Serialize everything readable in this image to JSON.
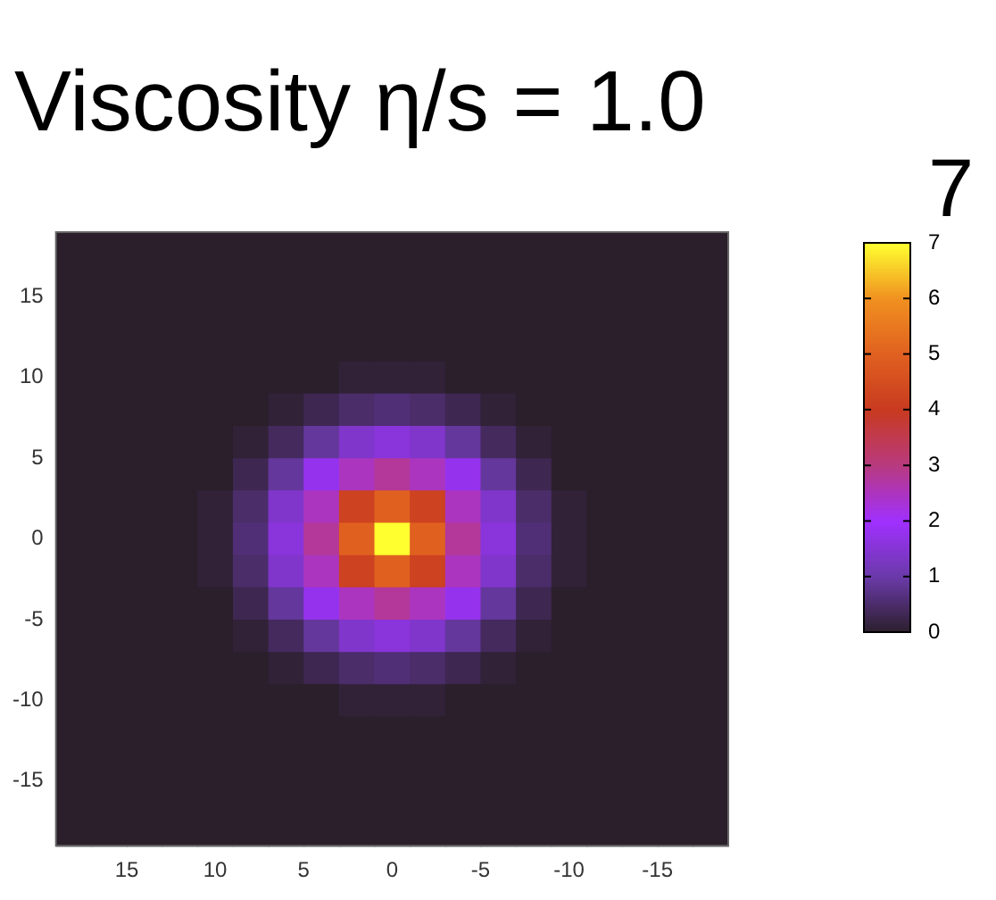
{
  "chart_data": {
    "type": "heatmap",
    "title": "Viscosity η/s = 1.0",
    "annotations": [
      "7"
    ],
    "x": [
      18,
      16,
      14,
      12,
      10,
      8,
      6,
      4,
      2,
      0,
      -2,
      -4,
      -6,
      -8,
      -10,
      -12,
      -14,
      -16,
      -18
    ],
    "y": [
      18,
      16,
      14,
      12,
      10,
      8,
      6,
      4,
      2,
      0,
      -2,
      -4,
      -6,
      -8,
      -10,
      -12,
      -14,
      -16,
      -18
    ],
    "xlim": [
      19,
      -19
    ],
    "xticks": [
      15,
      10,
      5,
      0,
      -5,
      -10,
      -15
    ],
    "ylim": [
      -19,
      19
    ],
    "yticks": [
      -15,
      -10,
      -5,
      0,
      5,
      10,
      15
    ],
    "clim": [
      0,
      7
    ],
    "cticks": [
      0,
      1,
      2,
      3,
      4,
      5,
      6,
      7
    ],
    "cells": [
      [
        0,
        0,
        0,
        0,
        0,
        0,
        0,
        0,
        0,
        0,
        0,
        0,
        0,
        0,
        0,
        0,
        0,
        0,
        0
      ],
      [
        0,
        0,
        0,
        0,
        0,
        0,
        0,
        0,
        0,
        0,
        0,
        0,
        0,
        0,
        0,
        0,
        0,
        0,
        0
      ],
      [
        0,
        0,
        0,
        0,
        0,
        0,
        0,
        0,
        0,
        0,
        0,
        0,
        0,
        0,
        0,
        0,
        0,
        0,
        0
      ],
      [
        0,
        0,
        0,
        0,
        0,
        0,
        0,
        0,
        0,
        0,
        0,
        0,
        0,
        0,
        0,
        0,
        0,
        0,
        0
      ],
      [
        0,
        0,
        0,
        0,
        0,
        0,
        0,
        0,
        0.1,
        0.1,
        0.1,
        0,
        0,
        0,
        0,
        0,
        0,
        0,
        0
      ],
      [
        0,
        0,
        0,
        0,
        0,
        0,
        0.1,
        0.3,
        0.5,
        0.6,
        0.5,
        0.3,
        0.1,
        0,
        0,
        0,
        0,
        0,
        0
      ],
      [
        0,
        0,
        0,
        0,
        0,
        0.1,
        0.4,
        0.9,
        1.4,
        1.6,
        1.4,
        0.9,
        0.4,
        0.1,
        0,
        0,
        0,
        0,
        0
      ],
      [
        0,
        0,
        0,
        0,
        0,
        0.3,
        0.9,
        1.8,
        2.5,
        2.8,
        2.5,
        1.8,
        0.9,
        0.3,
        0,
        0,
        0,
        0,
        0
      ],
      [
        0,
        0,
        0,
        0,
        0.1,
        0.5,
        1.4,
        2.5,
        4.2,
        5,
        4.2,
        2.5,
        1.4,
        0.5,
        0.1,
        0,
        0,
        0,
        0
      ],
      [
        0,
        0,
        0,
        0,
        0.1,
        0.6,
        1.6,
        2.8,
        5,
        7,
        5,
        2.8,
        1.6,
        0.6,
        0.1,
        0,
        0,
        0,
        0
      ],
      [
        0,
        0,
        0,
        0,
        0.1,
        0.5,
        1.4,
        2.5,
        4.2,
        5,
        4.2,
        2.5,
        1.4,
        0.5,
        0.1,
        0,
        0,
        0,
        0
      ],
      [
        0,
        0,
        0,
        0,
        0,
        0.3,
        0.9,
        1.8,
        2.5,
        2.8,
        2.5,
        1.8,
        0.9,
        0.3,
        0,
        0,
        0,
        0,
        0
      ],
      [
        0,
        0,
        0,
        0,
        0,
        0.1,
        0.4,
        0.9,
        1.4,
        1.6,
        1.4,
        0.9,
        0.4,
        0.1,
        0,
        0,
        0,
        0,
        0
      ],
      [
        0,
        0,
        0,
        0,
        0,
        0,
        0.1,
        0.3,
        0.5,
        0.6,
        0.5,
        0.3,
        0.1,
        0,
        0,
        0,
        0,
        0,
        0
      ],
      [
        0,
        0,
        0,
        0,
        0,
        0,
        0,
        0,
        0.1,
        0.1,
        0.1,
        0,
        0,
        0,
        0,
        0,
        0,
        0,
        0
      ],
      [
        0,
        0,
        0,
        0,
        0,
        0,
        0,
        0,
        0,
        0,
        0,
        0,
        0,
        0,
        0,
        0,
        0,
        0,
        0
      ],
      [
        0,
        0,
        0,
        0,
        0,
        0,
        0,
        0,
        0,
        0,
        0,
        0,
        0,
        0,
        0,
        0,
        0,
        0,
        0
      ],
      [
        0,
        0,
        0,
        0,
        0,
        0,
        0,
        0,
        0,
        0,
        0,
        0,
        0,
        0,
        0,
        0,
        0,
        0,
        0
      ],
      [
        0,
        0,
        0,
        0,
        0,
        0,
        0,
        0,
        0,
        0,
        0,
        0,
        0,
        0,
        0,
        0,
        0,
        0,
        0
      ]
    ]
  }
}
